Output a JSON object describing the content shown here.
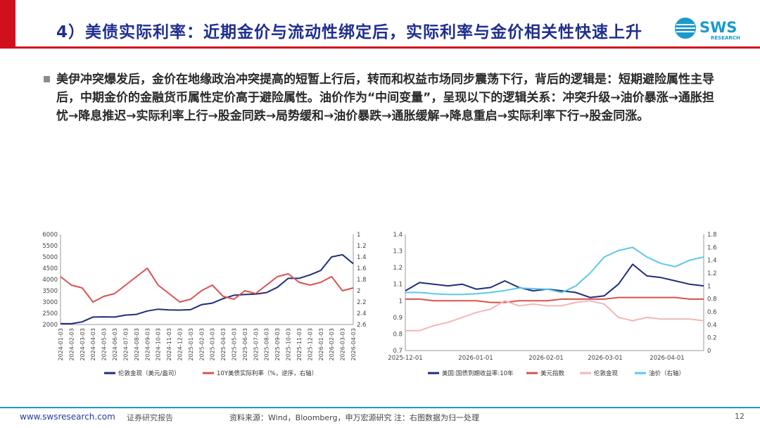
{
  "header": {
    "title": "4）美债实际利率：近期金价与流动性绑定后，实际利率与金价相关性快速上升",
    "logo_text": "SWS",
    "logo_subtext": "RESEARCH",
    "colors": {
      "accent_red": "#d0101b",
      "title_blue": "#1f2f8f",
      "logo_blue": "#1a9acb"
    }
  },
  "body": {
    "paragraph": "美伊冲突爆发后，金价在地缘政治冲突提高的短暂上行后，转而和权益市场同步震荡下行，背后的逻辑是：短期避险属性主导后，中期金价的金融货币属性定价高于避险属性。油价作为“中间变量”，呈现以下的逻辑关系：冲突升级→油价暴涨→通胀担忧→降息推迟→实际利率上行→股金同跌→局势缓和→油价暴跌→通胀缓解→降息重启→实际利率下行→股金同涨。"
  },
  "footer": {
    "url": "www.swsresearch.com",
    "label": "证券研究报告",
    "source": "资料来源：Wind，Bloomberg，申万宏源研究  注：右图数据为归一处理",
    "page": "12"
  },
  "chart_data": [
    {
      "type": "line",
      "x_tick_labels": [
        "2024-01-03",
        "2024-02-03",
        "2024-03-03",
        "2024-04-03",
        "2024-05-03",
        "2024-06-03",
        "2024-07-03",
        "2024-08-03",
        "2024-09-03",
        "2024-10-03",
        "2024-11-03",
        "2024-12-03",
        "2025-01-03",
        "2025-02-03",
        "2025-03-03",
        "2025-04-03",
        "2025-05-03",
        "2025-06-03",
        "2025-07-03",
        "2025-08-03",
        "2025-09-03",
        "2025-10-03",
        "2025-11-03",
        "2025-12-03",
        "2026-01-03",
        "2026-02-03",
        "2026-03-03",
        "2026-04-03"
      ],
      "y_left": {
        "range": [
          2000,
          6000
        ],
        "ticks": [
          "2000",
          "2500",
          "3000",
          "3500",
          "4000",
          "4500",
          "5000",
          "5500",
          "6000"
        ]
      },
      "y_right": {
        "range": [
          1,
          2.6
        ],
        "reversed": true,
        "ticks": [
          "1",
          "1.2",
          "1.4",
          "1.6",
          "1.8",
          "2",
          "2.2",
          "2.4",
          "2.6"
        ]
      },
      "series": [
        {
          "name": "伦敦金现（美元/盎司）",
          "color": "#1f2f7a",
          "axis": "left",
          "values": [
            2040,
            2035,
            2120,
            2330,
            2340,
            2330,
            2420,
            2450,
            2600,
            2680,
            2650,
            2640,
            2660,
            2880,
            2950,
            3150,
            3300,
            3330,
            3350,
            3420,
            3650,
            4050,
            4050,
            4200,
            4400,
            5000,
            5100,
            4700
          ]
        },
        {
          "name": "10Y美债实际利率（%，逆序，右轴）",
          "color": "#d9534f",
          "axis": "right",
          "values": [
            1.75,
            1.9,
            1.95,
            2.2,
            2.1,
            2.05,
            1.9,
            1.75,
            1.6,
            1.9,
            2.05,
            2.2,
            2.15,
            2.0,
            1.9,
            2.1,
            2.15,
            2.0,
            2.05,
            1.9,
            1.75,
            1.7,
            1.85,
            1.9,
            1.85,
            1.75,
            2.0,
            1.95
          ]
        }
      ]
    },
    {
      "type": "line",
      "x_tick_labels": [
        "2025-12-01",
        "2026-01-01",
        "2026-02-01",
        "2026-03-01",
        "2026-04-01"
      ],
      "y_left": {
        "range": [
          0.7,
          1.4
        ],
        "ticks": [
          "0.7",
          "0.8",
          "0.9",
          "1",
          "1.1",
          "1.2",
          "1.3",
          "1.4"
        ]
      },
      "y_right": {
        "range": [
          0,
          1.8
        ],
        "ticks": [
          "0",
          "0.2",
          "0.4",
          "0.6",
          "0.8",
          "1",
          "1.2",
          "1.4",
          "1.6",
          "1.8"
        ]
      },
      "series": [
        {
          "name": "美国:国债到期收益率:10年",
          "color": "#1f2f7a",
          "axis": "left",
          "values": [
            1.06,
            1.11,
            1.1,
            1.09,
            1.1,
            1.07,
            1.08,
            1.12,
            1.08,
            1.06,
            1.07,
            1.06,
            1.05,
            1.02,
            1.03,
            1.1,
            1.22,
            1.15,
            1.14,
            1.12,
            1.1,
            1.09
          ]
        },
        {
          "name": "美元指数",
          "color": "#d9534f",
          "axis": "left",
          "values": [
            1.01,
            1.01,
            1.0,
            1.0,
            1.0,
            1.0,
            0.99,
            0.99,
            1.0,
            1.0,
            1.0,
            1.01,
            1.01,
            1.01,
            1.01,
            1.02,
            1.02,
            1.02,
            1.02,
            1.02,
            1.01,
            1.01
          ]
        },
        {
          "name": "伦敦金现",
          "color": "#f4b6b6",
          "axis": "left",
          "values": [
            0.82,
            0.82,
            0.85,
            0.87,
            0.9,
            0.93,
            0.95,
            1.0,
            0.97,
            0.98,
            0.97,
            0.97,
            0.99,
            1.0,
            0.98,
            0.9,
            0.88,
            0.9,
            0.89,
            0.89,
            0.89,
            0.88
          ]
        },
        {
          "name": "油价（右轴）",
          "color": "#5bc8e8",
          "axis": "right",
          "values": [
            0.9,
            0.9,
            0.88,
            0.87,
            0.87,
            0.88,
            0.9,
            0.93,
            0.97,
            0.96,
            0.95,
            0.9,
            1.0,
            1.2,
            1.45,
            1.55,
            1.6,
            1.45,
            1.35,
            1.3,
            1.4,
            1.45
          ]
        }
      ]
    }
  ]
}
